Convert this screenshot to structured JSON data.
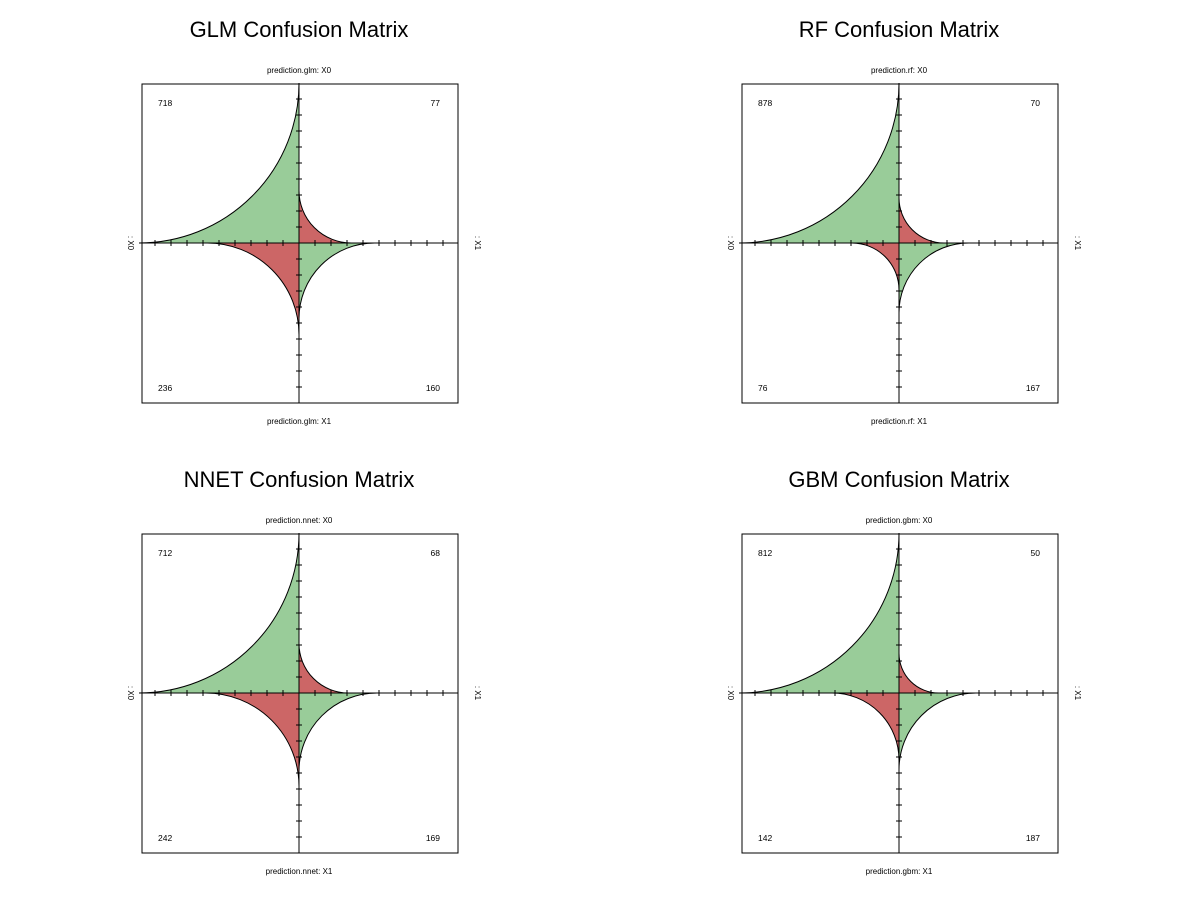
{
  "colors": {
    "correct": "#99CC99",
    "incorrect": "#CC6666",
    "frame": "#000000",
    "background": "#FFFFFF"
  },
  "chart_data": [
    {
      "type": "fourfold",
      "title": "GLM Confusion Matrix",
      "top_label": "prediction.glm: X0",
      "bottom_label": "prediction.glm: X1",
      "left_label": ": X0",
      "right_label": ": X1",
      "cells": {
        "top_left": 718,
        "top_right": 77,
        "bottom_left": 236,
        "bottom_right": 160
      },
      "cell_labels": {
        "top_left": "718",
        "top_right": "77",
        "bottom_left": "236",
        "bottom_right": "160"
      },
      "cell_correct": {
        "top_left": true,
        "top_right": false,
        "bottom_left": false,
        "bottom_right": true
      }
    },
    {
      "type": "fourfold",
      "title": "RF Confusion Matrix",
      "top_label": "prediction.rf: X0",
      "bottom_label": "prediction.rf: X1",
      "left_label": ": X0",
      "right_label": ": X1",
      "cells": {
        "top_left": 878,
        "top_right": 70,
        "bottom_left": 76,
        "bottom_right": 167
      },
      "cell_labels": {
        "top_left": "878",
        "top_right": "70",
        "bottom_left": "76",
        "bottom_right": "167"
      },
      "cell_correct": {
        "top_left": true,
        "top_right": false,
        "bottom_left": false,
        "bottom_right": true
      }
    },
    {
      "type": "fourfold",
      "title": "NNET Confusion Matrix",
      "top_label": "prediction.nnet: X0",
      "bottom_label": "prediction.nnet: X1",
      "left_label": ": X0",
      "right_label": ": X1",
      "cells": {
        "top_left": 712,
        "top_right": 68,
        "bottom_left": 242,
        "bottom_right": 169
      },
      "cell_labels": {
        "top_left": "712",
        "top_right": "68",
        "bottom_left": "242",
        "bottom_right": "169"
      },
      "cell_correct": {
        "top_left": true,
        "top_right": false,
        "bottom_left": false,
        "bottom_right": true
      }
    },
    {
      "type": "fourfold",
      "title": "GBM Confusion Matrix",
      "top_label": "prediction.gbm: X0",
      "bottom_label": "prediction.gbm: X1",
      "left_label": ": X0",
      "right_label": ": X1",
      "cells": {
        "top_left": 812,
        "top_right": 50,
        "bottom_left": 142,
        "bottom_right": 187
      },
      "cell_labels": {
        "top_left": "812",
        "top_right": "50",
        "bottom_left": "142",
        "bottom_right": "187"
      },
      "cell_correct": {
        "top_left": true,
        "top_right": false,
        "bottom_left": false,
        "bottom_right": true
      }
    }
  ]
}
